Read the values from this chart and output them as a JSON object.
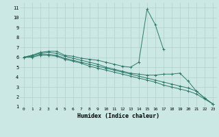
{
  "xlabel": "Humidex (Indice chaleur)",
  "background_color": "#cce8e4",
  "grid_color": "#b0d0cc",
  "line_color": "#2a7a6a",
  "xlim": [
    -0.5,
    23.5
  ],
  "ylim": [
    1,
    11.5
  ],
  "xticks": [
    0,
    1,
    2,
    3,
    4,
    5,
    6,
    7,
    8,
    9,
    10,
    11,
    12,
    13,
    14,
    15,
    16,
    17,
    18,
    19,
    20,
    21,
    22,
    23
  ],
  "yticks": [
    1,
    2,
    3,
    4,
    5,
    6,
    7,
    8,
    9,
    10,
    11
  ],
  "series": [
    [
      6.0,
      6.2,
      6.5,
      6.6,
      6.6,
      6.2,
      6.1,
      5.9,
      5.8,
      5.7,
      5.5,
      5.3,
      5.1,
      5.0,
      5.5,
      10.85,
      9.3,
      6.8,
      null,
      null,
      null,
      null,
      null,
      null
    ],
    [
      6.0,
      6.2,
      6.4,
      6.5,
      6.4,
      6.1,
      5.9,
      5.7,
      5.5,
      5.3,
      5.0,
      4.8,
      4.6,
      4.4,
      4.3,
      4.2,
      4.2,
      4.3,
      4.3,
      4.4,
      3.6,
      2.6,
      1.9,
      1.3
    ],
    [
      6.0,
      6.1,
      6.3,
      6.3,
      6.2,
      5.9,
      5.7,
      5.5,
      5.3,
      5.1,
      4.9,
      4.7,
      4.5,
      4.3,
      4.1,
      3.9,
      3.7,
      3.5,
      3.3,
      3.1,
      2.9,
      2.6,
      1.9,
      1.3
    ],
    [
      6.0,
      6.0,
      6.2,
      6.2,
      6.1,
      5.8,
      5.6,
      5.4,
      5.1,
      4.9,
      4.7,
      4.5,
      4.3,
      4.1,
      3.9,
      3.7,
      3.5,
      3.2,
      3.0,
      2.8,
      2.6,
      2.3,
      1.8,
      1.3
    ]
  ]
}
